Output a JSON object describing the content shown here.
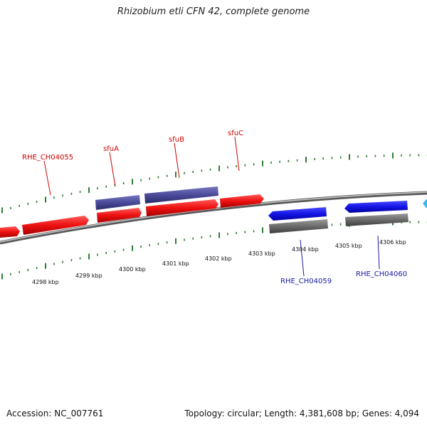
{
  "title": "Rhizobium etli CFN 42, complete genome",
  "footer": {
    "accession": "Accession: NC_007761",
    "summary": "Topology: circular; Length: 4,381,608 bp; Genes: 4,094"
  },
  "colors": {
    "forward_gene": "#ee1111",
    "forward_gene_dark": "#b30000",
    "reverse_gene": "#1515e6",
    "reverse_gene_dark": "#0000a8",
    "feature_purple": "#4a4a9a",
    "feature_gray": "#6b6b6b",
    "backbone": "#888888",
    "ticks": "#2e7d32",
    "cyan_partial": "#33bbee"
  },
  "ruler_labels": [
    "4298 kbp",
    "4299 kbp",
    "4300 kbp",
    "4301 kbp",
    "4302 kbp",
    "4303 kbp",
    "4304 kbp",
    "4305 kbp",
    "4306 kbp"
  ],
  "gene_labels": {
    "rhe_ch04055": "RHE_CH04055",
    "sfuA": "sfuA",
    "sfuB": "sfuB",
    "sfuC": "sfuC",
    "rhe_ch04059": "RHE_CH04059",
    "rhe_ch04060": "RHE_CH04060"
  }
}
